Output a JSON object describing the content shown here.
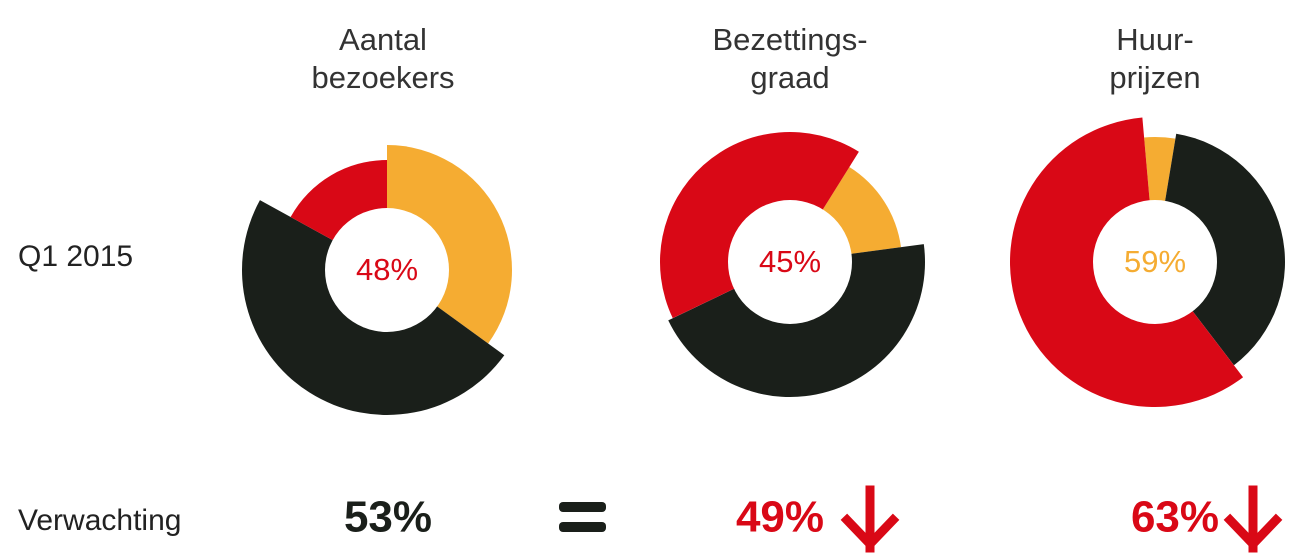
{
  "chart_data": [
    {
      "type": "pie",
      "title": [
        "Aantal",
        "bezoekers"
      ],
      "center_label": "48%",
      "center_label_color": "#d90816",
      "values": [
        35,
        48,
        17
      ],
      "colors": [
        "#f5ac32",
        "#1a1f1a",
        "#d90816"
      ],
      "expectation": "53%",
      "expectation_color": "#1a1f1a"
    },
    {
      "type": "pie",
      "title": [
        "Bezettings-",
        "graad"
      ],
      "center_label": "45%",
      "center_label_color": "#d90816",
      "values": [
        14,
        45,
        41
      ],
      "colors": [
        "#f5ac32",
        "#1a1f1a",
        "#d90816"
      ],
      "expectation": "49%",
      "expectation_color": "#d90816"
    },
    {
      "type": "pie",
      "title": [
        "Huur-",
        "prijzen"
      ],
      "center_label": "59%",
      "center_label_color": "#f5ac32",
      "values": [
        4,
        37,
        59
      ],
      "colors": [
        "#f5ac32",
        "#1a1f1a",
        "#d90816"
      ],
      "expectation": "63%",
      "expectation_color": "#d90816"
    }
  ],
  "rows": [
    "Q1 2015",
    "Verwachting"
  ]
}
